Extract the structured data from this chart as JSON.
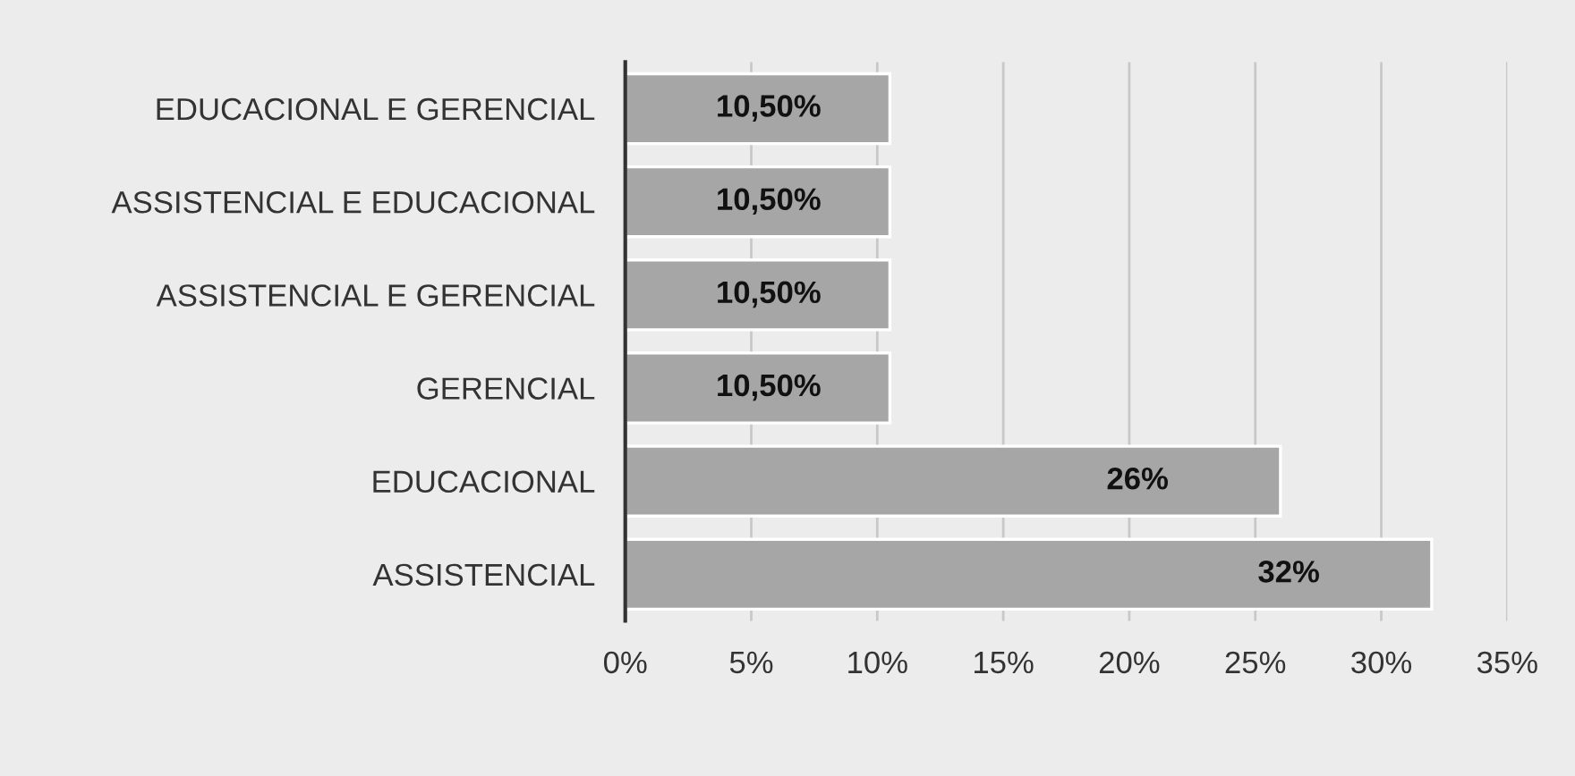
{
  "chart_data": {
    "type": "bar",
    "orientation": "horizontal",
    "categories": [
      "EDUCACIONAL E GERENCIAL",
      "ASSISTENCIAL E EDUCACIONAL",
      "ASSISTENCIAL E GERENCIAL",
      "GERENCIAL",
      "EDUCACIONAL",
      "ASSISTENCIAL"
    ],
    "values": [
      10.5,
      10.5,
      10.5,
      10.5,
      26,
      32
    ],
    "value_labels": [
      "10,50%",
      "10,50%",
      "10,50%",
      "10,50%",
      "26%",
      "32%"
    ],
    "color": "#a6a6a6",
    "xlim": [
      0,
      35
    ],
    "xticks": [
      {
        "value": 0,
        "label": "0%"
      },
      {
        "value": 5,
        "label": "5%"
      },
      {
        "value": 10,
        "label": "10%"
      },
      {
        "value": 15,
        "label": "15%"
      },
      {
        "value": 20,
        "label": "20%"
      },
      {
        "value": 25,
        "label": "25%"
      },
      {
        "value": 30,
        "label": "30%"
      },
      {
        "value": 35,
        "label": "35%"
      }
    ],
    "grid": "x",
    "legend": false
  }
}
